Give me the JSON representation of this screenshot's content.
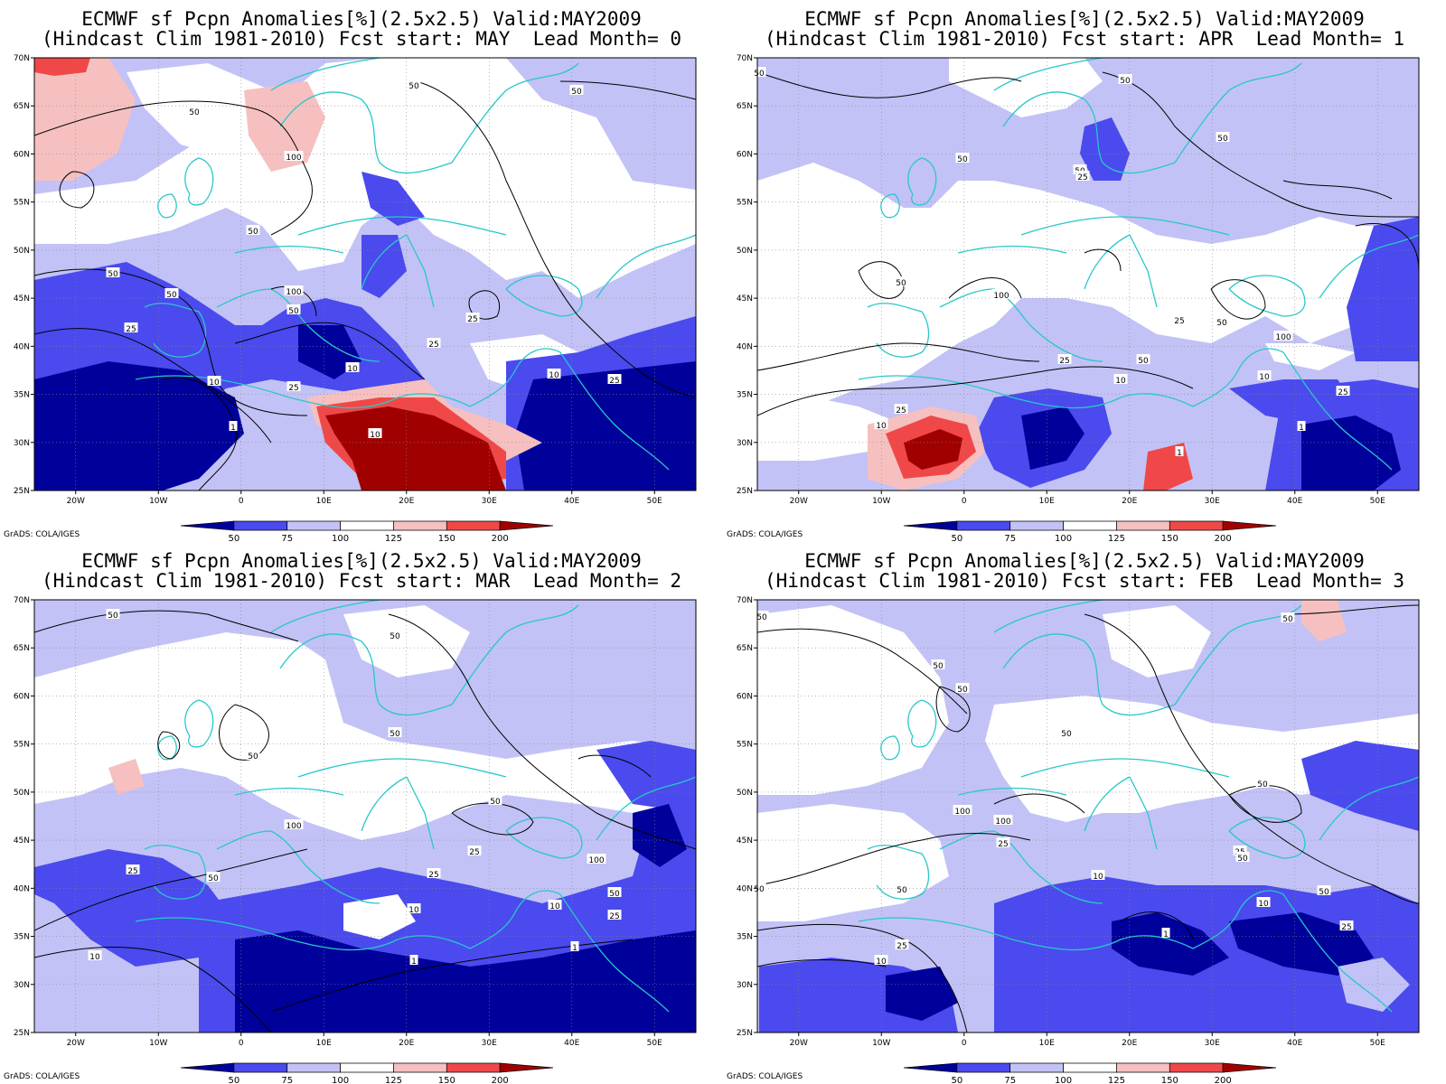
{
  "credit": "GrADS: COLA/IGES",
  "colors": {
    "vdblue": "#00009a",
    "dblue": "#4a4aee",
    "lblue": "#c2c2f6",
    "white": "#ffffff",
    "lred": "#f6c0c0",
    "red": "#f04848",
    "dred": "#a00000",
    "coast": "#28c8c8",
    "contour": "#000000"
  },
  "chart_data": [
    {
      "type": "heatmap",
      "title_line1": "ECMWF sf Pcpn Anomalies[%](2.5x2.5) Valid:MAY2009",
      "title_line2": "(Hindcast Clim 1981-2010) Fcst start: MAY  Lead Month= 0",
      "x_ticks": [
        "20W",
        "10W",
        "0",
        "10E",
        "20E",
        "30E",
        "40E",
        "50E"
      ],
      "y_ticks": [
        "25N",
        "30N",
        "35N",
        "40N",
        "45N",
        "50N",
        "55N",
        "60N",
        "65N",
        "70N"
      ],
      "xlim": [
        -25,
        55
      ],
      "ylim": [
        25,
        70
      ],
      "colorbar_levels": [
        "50",
        "75",
        "100",
        "125",
        "150",
        "200"
      ],
      "contour_labels": [
        "50",
        "100",
        "50",
        "25",
        "10",
        "1"
      ]
    },
    {
      "type": "heatmap",
      "title_line1": "ECMWF sf Pcpn Anomalies[%](2.5x2.5) Valid:MAY2009",
      "title_line2": "(Hindcast Clim 1981-2010) Fcst start: APR  Lead Month= 1",
      "x_ticks": [
        "20W",
        "10W",
        "0",
        "10E",
        "20E",
        "30E",
        "40E",
        "50E"
      ],
      "y_ticks": [
        "25N",
        "30N",
        "35N",
        "40N",
        "45N",
        "50N",
        "55N",
        "60N",
        "65N",
        "70N"
      ],
      "xlim": [
        -25,
        55
      ],
      "ylim": [
        25,
        70
      ],
      "colorbar_levels": [
        "50",
        "75",
        "100",
        "125",
        "150",
        "200"
      ],
      "contour_labels": [
        "50",
        "25",
        "100",
        "10",
        "1"
      ]
    },
    {
      "type": "heatmap",
      "title_line1": "ECMWF sf Pcpn Anomalies[%](2.5x2.5) Valid:MAY2009",
      "title_line2": "(Hindcast Clim 1981-2010) Fcst start: MAR  Lead Month= 2",
      "x_ticks": [
        "20W",
        "10W",
        "0",
        "10E",
        "20E",
        "30E",
        "40E",
        "50E"
      ],
      "y_ticks": [
        "25N",
        "30N",
        "35N",
        "40N",
        "45N",
        "50N",
        "55N",
        "60N",
        "65N",
        "70N"
      ],
      "xlim": [
        -25,
        55
      ],
      "ylim": [
        25,
        70
      ],
      "colorbar_levels": [
        "50",
        "75",
        "100",
        "125",
        "150",
        "200"
      ],
      "contour_labels": [
        "50",
        "100",
        "25",
        "10",
        "1"
      ]
    },
    {
      "type": "heatmap",
      "title_line1": "ECMWF sf Pcpn Anomalies[%](2.5x2.5) Valid:MAY2009",
      "title_line2": "(Hindcast Clim 1981-2010) Fcst start: FEB  Lead Month= 3",
      "x_ticks": [
        "20W",
        "10W",
        "0",
        "10E",
        "20E",
        "30E",
        "40E",
        "50E"
      ],
      "y_ticks": [
        "25N",
        "30N",
        "35N",
        "40N",
        "45N",
        "50N",
        "55N",
        "60N",
        "65N",
        "70N"
      ],
      "xlim": [
        -25,
        55
      ],
      "ylim": [
        25,
        70
      ],
      "colorbar_levels": [
        "50",
        "75",
        "100",
        "125",
        "150",
        "200"
      ],
      "contour_labels": [
        "50",
        "100",
        "25",
        "10",
        "1"
      ]
    }
  ]
}
